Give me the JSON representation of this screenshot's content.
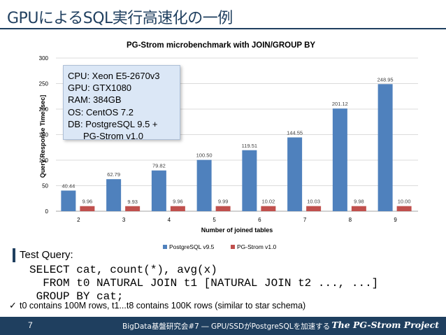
{
  "slide": {
    "title": "GPUによるSQL実行高速化の一例",
    "page_number": "7",
    "footer_text": "BigData基盤研究会#7 ― GPU/SSDがPostgreSQLを加速する",
    "brand": "The PG-Strom Project"
  },
  "infobox": {
    "lines": [
      "CPU: Xeon E5-2670v3",
      "GPU: GTX1080",
      "RAM: 384GB",
      "OS: CentOS 7.2",
      "DB: PostgreSQL 9.5 +",
      "PG-Strom v1.0"
    ]
  },
  "query": {
    "heading": "Test Query:",
    "lines": [
      "SELECT cat, count(*), avg(x)",
      "  FROM t0 NATURAL JOIN t1 [NATURAL JOIN t2 ..., ...]",
      " GROUP BY cat;"
    ],
    "note": "t0 contains 100M rows, t1...t8 contains 100K rows (similar to star schema)"
  },
  "chart_data": {
    "type": "bar",
    "title": "PG-Strom microbenchmark with JOIN/GROUP BY",
    "xlabel": "Number of joined tables",
    "ylabel": "Query Response Time [sec]",
    "categories": [
      "2",
      "3",
      "4",
      "5",
      "6",
      "7",
      "8",
      "9"
    ],
    "ylim": [
      0,
      300
    ],
    "yticks": [
      0,
      50,
      100,
      150,
      200,
      250,
      300
    ],
    "grid": true,
    "legend_position": "bottom",
    "series": [
      {
        "name": "PostgreSQL v9.5",
        "color": "#4f81bd",
        "values": [
          40.44,
          62.79,
          79.82,
          100.5,
          119.51,
          144.55,
          201.12,
          248.95
        ],
        "labels": [
          "40.44",
          "62.79",
          "79.82",
          "100.50",
          "119.51",
          "144.55",
          "201.12",
          "248.95"
        ]
      },
      {
        "name": "PG-Strom v1.0",
        "color": "#c0504d",
        "values": [
          9.96,
          9.93,
          9.96,
          9.99,
          10.02,
          10.03,
          9.98,
          10.0
        ],
        "labels": [
          "9.96",
          "9.93",
          "9.96",
          "9.99",
          "10.02",
          "10.03",
          "9.98",
          "10.00"
        ]
      }
    ]
  }
}
